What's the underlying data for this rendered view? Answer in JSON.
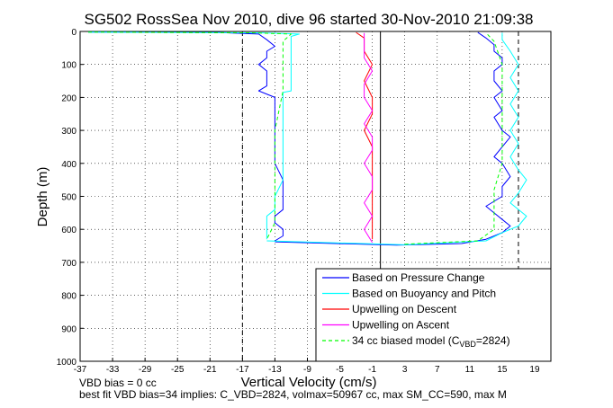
{
  "chart_data": {
    "type": "line",
    "title": "SG502 RossSea Nov 2010, dive 96 started 30-Nov-2010 21:09:38",
    "xlabel": "Vertical Velocity (cm/s)",
    "ylabel": "Depth (m)",
    "xlim": [
      -37,
      21
    ],
    "ylim": [
      0,
      1000
    ],
    "y_reversed": true,
    "xticks": [
      -37,
      -33,
      -29,
      -25,
      -21,
      -17,
      -13,
      -9,
      -5,
      -1,
      3,
      7,
      11,
      15,
      19
    ],
    "yticks": [
      0,
      100,
      200,
      300,
      400,
      500,
      600,
      700,
      800,
      900,
      1000
    ],
    "grid": true,
    "legend_position": "bottom-right",
    "reference_lines": {
      "solid_x": [
        0
      ],
      "dashed_x": [
        -17,
        17
      ]
    },
    "series": [
      {
        "name": "Based on Pressure Change",
        "color": "#0000ff",
        "style": "solid",
        "descent": [
          [
            -36,
            2
          ],
          [
            -20,
            3
          ],
          [
            -15,
            8
          ],
          [
            -14,
            25
          ],
          [
            -13,
            45
          ],
          [
            -14,
            60
          ],
          [
            -14,
            80
          ],
          [
            -15,
            100
          ],
          [
            -14,
            120
          ],
          [
            -14,
            145
          ],
          [
            -14,
            165
          ],
          [
            -15,
            180
          ],
          [
            -13,
            200
          ],
          [
            -13,
            250
          ],
          [
            -13,
            300
          ],
          [
            -13,
            350
          ],
          [
            -13,
            400
          ],
          [
            -12,
            450
          ],
          [
            -12,
            500
          ],
          [
            -12,
            540
          ],
          [
            -13,
            560
          ],
          [
            -13,
            580
          ],
          [
            -12,
            600
          ],
          [
            -12,
            620
          ],
          [
            -13,
            635
          ]
        ],
        "ascent": [
          [
            -13,
            638
          ],
          [
            2,
            648
          ],
          [
            10,
            643
          ],
          [
            13,
            630
          ],
          [
            15,
            610
          ],
          [
            16,
            590
          ],
          [
            15,
            570
          ],
          [
            14,
            550
          ],
          [
            13,
            530
          ],
          [
            15,
            500
          ],
          [
            15,
            470
          ],
          [
            16,
            440
          ],
          [
            15,
            400
          ],
          [
            14,
            380
          ],
          [
            15,
            350
          ],
          [
            16,
            320
          ],
          [
            15,
            300
          ],
          [
            14,
            260
          ],
          [
            15,
            240
          ],
          [
            14,
            200
          ],
          [
            15,
            180
          ],
          [
            14,
            150
          ],
          [
            14,
            120
          ],
          [
            15,
            100
          ],
          [
            15,
            80
          ],
          [
            14,
            60
          ],
          [
            14,
            40
          ],
          [
            13,
            20
          ],
          [
            12,
            3
          ]
        ]
      },
      {
        "name": "Based on Buoyancy and Pitch",
        "color": "#00ffff",
        "style": "solid",
        "descent": [
          [
            -36,
            2
          ],
          [
            -15,
            4
          ],
          [
            -10,
            8
          ],
          [
            -11,
            15
          ],
          [
            -11,
            40
          ],
          [
            -11,
            80
          ],
          [
            -11,
            120
          ],
          [
            -11,
            160
          ],
          [
            -11,
            180
          ],
          [
            -12,
            185
          ],
          [
            -12,
            250
          ],
          [
            -12,
            300
          ],
          [
            -12,
            350
          ],
          [
            -12,
            400
          ],
          [
            -12,
            450
          ],
          [
            -13,
            500
          ],
          [
            -13,
            540
          ],
          [
            -14,
            560
          ],
          [
            -14,
            600
          ],
          [
            -14,
            630
          ]
        ],
        "ascent": [
          [
            -14,
            635
          ],
          [
            3,
            647
          ],
          [
            13,
            635
          ],
          [
            15,
            610
          ],
          [
            17,
            590
          ],
          [
            18,
            560
          ],
          [
            16,
            520
          ],
          [
            17,
            490
          ],
          [
            18,
            450
          ],
          [
            17,
            420
          ],
          [
            16,
            380
          ],
          [
            17,
            340
          ],
          [
            16,
            300
          ],
          [
            17,
            260
          ],
          [
            16,
            220
          ],
          [
            17,
            180
          ],
          [
            16,
            140
          ],
          [
            17,
            100
          ],
          [
            16,
            60
          ],
          [
            15,
            25
          ],
          [
            15,
            4
          ]
        ]
      },
      {
        "name": "Upwelling on Descent",
        "color": "#ff0000",
        "style": "solid",
        "descent": [
          [
            -3,
            3
          ],
          [
            -2,
            20
          ],
          [
            -2,
            60
          ],
          [
            -1,
            100
          ],
          [
            -2,
            150
          ],
          [
            -1,
            200
          ],
          [
            -1,
            250
          ],
          [
            -2,
            300
          ],
          [
            -1,
            350
          ],
          [
            -1,
            400
          ],
          [
            -1,
            450
          ],
          [
            -1,
            500
          ],
          [
            -1,
            550
          ],
          [
            -1,
            600
          ],
          [
            -1,
            630
          ]
        ]
      },
      {
        "name": "Upwelling on Ascent",
        "color": "#ff00ff",
        "style": "solid",
        "ascent": [
          [
            -1,
            640
          ],
          [
            -2,
            600
          ],
          [
            -1,
            560
          ],
          [
            -2,
            520
          ],
          [
            -1,
            480
          ],
          [
            -1,
            440
          ],
          [
            -2,
            400
          ],
          [
            -1,
            360
          ],
          [
            -1,
            320
          ],
          [
            -2,
            280
          ],
          [
            -1,
            240
          ],
          [
            -2,
            200
          ],
          [
            -2,
            160
          ],
          [
            -1,
            120
          ],
          [
            -2,
            80
          ],
          [
            -2,
            40
          ],
          [
            -2,
            5
          ]
        ]
      },
      {
        "name": "34 cc biased model (C_VBD=2824)",
        "legend_main": "34 cc biased model (C",
        "legend_sub": "VBD",
        "legend_tail": "=2824)",
        "color": "#00ff00",
        "style": "dashed",
        "descent": [
          [
            -36,
            2
          ],
          [
            -16,
            4
          ],
          [
            -11,
            8
          ],
          [
            -12,
            30
          ],
          [
            -12,
            100
          ],
          [
            -12,
            180
          ],
          [
            -13,
            300
          ],
          [
            -13,
            400
          ],
          [
            -13,
            500
          ],
          [
            -13,
            580
          ],
          [
            -14,
            630
          ]
        ],
        "ascent": [
          [
            3,
            645
          ],
          [
            12,
            635
          ],
          [
            14,
            600
          ],
          [
            14,
            540
          ],
          [
            14,
            480
          ],
          [
            15,
            400
          ],
          [
            15,
            300
          ],
          [
            15,
            200
          ],
          [
            15,
            100
          ],
          [
            14,
            30
          ],
          [
            13,
            4
          ]
        ]
      }
    ],
    "footnote_1": "VBD bias = 0 cc",
    "footnote_2": "best fit VBD bias=34 implies: C_VBD=2824, volmax=50967 cc, max SM_CC=590, max M"
  }
}
